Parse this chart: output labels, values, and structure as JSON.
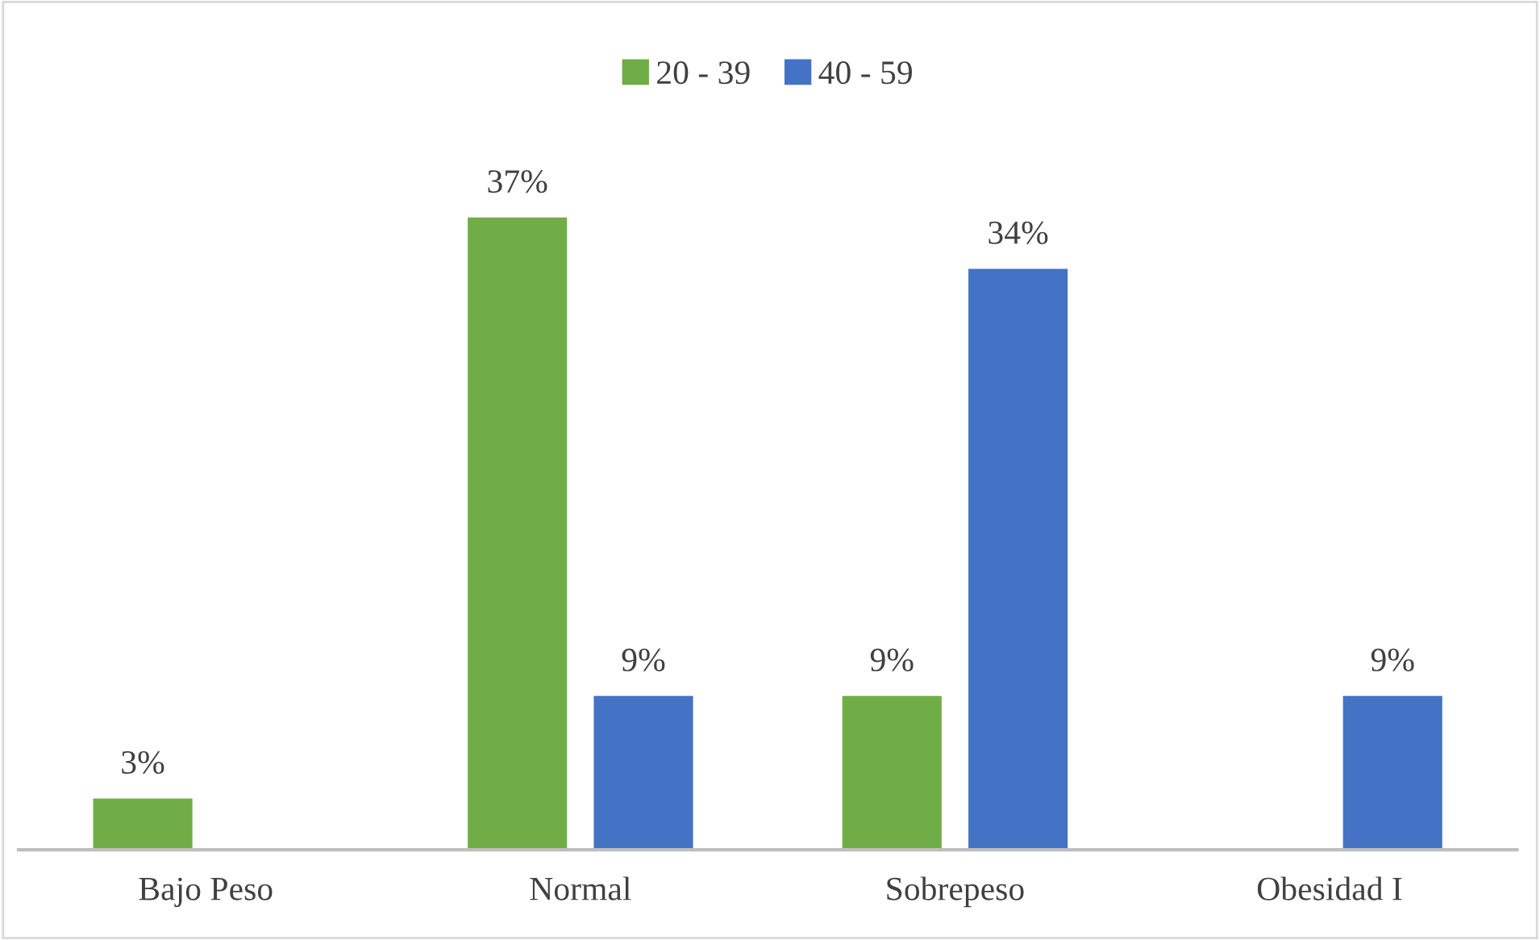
{
  "chart_data": {
    "type": "bar",
    "categories": [
      "Bajo Peso",
      "Normal",
      "Sobrepeso",
      "Obesidad I"
    ],
    "series": [
      {
        "name": "20 - 39",
        "color": "#70ad47",
        "values": [
          3,
          37,
          9,
          null
        ],
        "value_labels": [
          "3%",
          "37%",
          "9%",
          null
        ]
      },
      {
        "name": "40 - 59",
        "color": "#4472c4",
        "values": [
          null,
          9,
          34,
          9
        ],
        "value_labels": [
          null,
          "9%",
          "34%",
          "9%"
        ]
      }
    ],
    "legend": "top",
    "grid": false
  }
}
